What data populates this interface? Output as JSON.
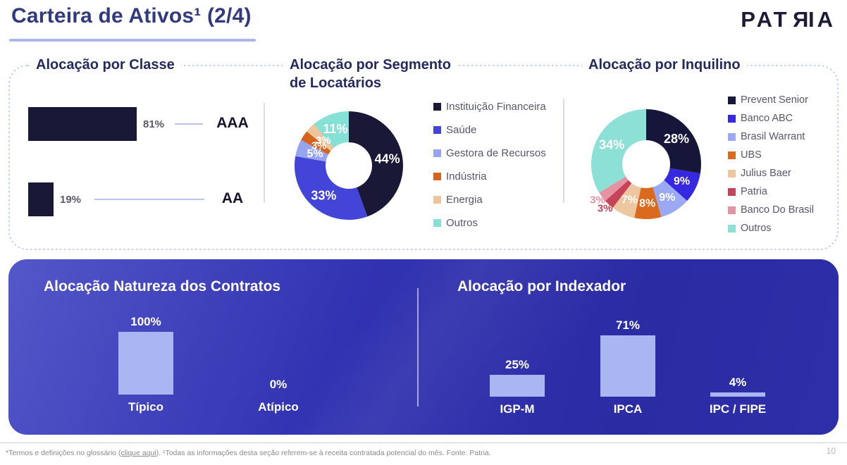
{
  "header": {
    "title": "Carteira de Ativos¹ (2/4)",
    "logo_pre": "PAT",
    "logo_mirrored": "R",
    "logo_post": "IA"
  },
  "chart_data": [
    {
      "id": "classe",
      "type": "bar",
      "orientation": "horizontal",
      "title": "Alocação por Classe",
      "categories": [
        "AAA",
        "AA"
      ],
      "values": [
        81,
        19
      ],
      "value_labels": [
        "81%",
        "19%"
      ],
      "bar_color": "#191937",
      "xlim": [
        0,
        100
      ]
    },
    {
      "id": "segmento",
      "type": "pie",
      "title": "Alocação por Segmento de Locatários",
      "title_lines": [
        "Alocação por Segmento",
        "de Locatários"
      ],
      "legend_position": "right",
      "slices": [
        {
          "label": "Instituição Financeira",
          "value": 44,
          "color": "#191937"
        },
        {
          "label": "Saúde",
          "value": 33,
          "color": "#4245d8"
        },
        {
          "label": "Gestora de Recursos",
          "value": 5,
          "color": "#97a5f0"
        },
        {
          "label": "Indústria",
          "value": 3,
          "color": "#d6631d"
        },
        {
          "label": "Energia",
          "value": 3,
          "color": "#eec49c"
        },
        {
          "label": "Outros",
          "value": 11,
          "color": "#85e0d6"
        }
      ]
    },
    {
      "id": "inquilino",
      "type": "pie",
      "title": "Alocação por Inquilino",
      "legend_position": "right",
      "slices": [
        {
          "label": "Prevent Senior",
          "value": 28,
          "color": "#16163a"
        },
        {
          "label": "Banco ABC",
          "value": 9,
          "color": "#3627e0"
        },
        {
          "label": "Brasil Warrant",
          "value": 9,
          "color": "#9aa9f2"
        },
        {
          "label": "UBS",
          "value": 8,
          "color": "#da6a1e"
        },
        {
          "label": "Julius Baer",
          "value": 7,
          "color": "#eec6a0"
        },
        {
          "label": "Patria",
          "value": 3,
          "color": "#c64458",
          "label_outside": true
        },
        {
          "label": "Banco Do Brasil",
          "value": 3,
          "color": "#e593a3",
          "label_outside": true
        },
        {
          "label": "Outros",
          "value": 34,
          "color": "#8ce0d6"
        }
      ]
    },
    {
      "id": "contratos",
      "type": "bar",
      "orientation": "vertical",
      "title": "Alocação Natureza dos Contratos",
      "categories": [
        "Típico",
        "Atípico"
      ],
      "values": [
        100,
        0
      ],
      "value_labels": [
        "100%",
        "0%"
      ],
      "bar_color": "#a9b6f2",
      "ylim": [
        0,
        100
      ]
    },
    {
      "id": "indexador",
      "type": "bar",
      "orientation": "vertical",
      "title": "Alocação por Indexador",
      "categories": [
        "IGP-M",
        "IPCA",
        "IPC / FIPE"
      ],
      "values": [
        25,
        71,
        4
      ],
      "value_labels": [
        "25%",
        "71%",
        "4%"
      ],
      "bar_color": "#a9b6f2",
      "ylim": [
        0,
        100
      ]
    }
  ],
  "footer": {
    "note_prefix": "*Termos e definições no glossário (",
    "link": "clique aqui",
    "note_suffix": "). ¹Todas as informações desta seção referem-se à receita contratada potencial do mês. Fonte: Patria.",
    "page_number": "10"
  },
  "colors": {
    "underline_accent": "#a9b7ea",
    "dashed_border": "#bcc8f0",
    "panel_blue": "#2e2ea8",
    "light_bar": "#a9b6f2",
    "navy": "#191937"
  }
}
